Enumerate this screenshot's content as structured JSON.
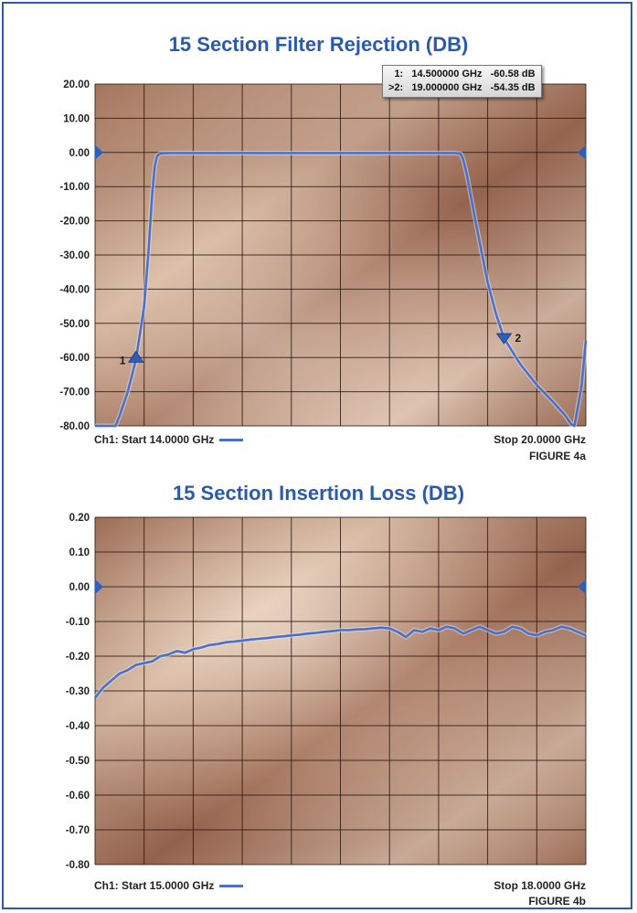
{
  "chart_data": [
    {
      "type": "line",
      "title": "15 Section Filter Rejection (DB)",
      "ylim": [
        -80,
        20
      ],
      "yticks": [
        "20.00",
        "10.00",
        "0.00",
        "-10.00",
        "-20.00",
        "-30.00",
        "-40.00",
        "-50.00",
        "-60.00",
        "-70.00",
        "-80.00"
      ],
      "xlim": [
        14.0,
        20.0
      ],
      "grid": true,
      "reference_level": 0,
      "start_label": "Ch1: Start 14.0000 GHz",
      "stop_label": "Stop 20.0000 GHz",
      "figure_label": "FIGURE 4a",
      "series": [
        {
          "color": "#4f6fc4",
          "x": [
            14.0,
            14.25,
            14.3,
            14.4,
            14.5,
            14.6,
            14.65,
            14.7,
            14.73,
            14.76,
            14.8,
            14.9,
            15.2,
            16.0,
            17.0,
            18.0,
            18.4,
            18.47,
            18.5,
            18.55,
            18.65,
            18.8,
            18.9,
            19.0,
            19.2,
            19.4,
            19.6,
            19.75,
            19.82,
            19.86,
            19.9,
            19.95,
            20.0
          ],
          "y": [
            -80.0,
            -80.0,
            -77.0,
            -70.0,
            -60.58,
            -45.0,
            -30.0,
            -12.0,
            -4.0,
            -1.0,
            -0.3,
            -0.2,
            -0.2,
            -0.2,
            -0.2,
            -0.2,
            -0.2,
            -0.4,
            -2.0,
            -7.0,
            -20.0,
            -38.0,
            -47.0,
            -54.35,
            -62.0,
            -68.0,
            -73.0,
            -77.0,
            -79.5,
            -80.0,
            -75.0,
            -68.0,
            -55.0
          ]
        }
      ],
      "markers": [
        {
          "label": "1",
          "x": 14.5,
          "y": -60.58
        },
        {
          "label": "2",
          "x": 19.0,
          "y": -54.35
        }
      ],
      "marker_readout": [
        {
          "id": "1:",
          "freq": "14.500000 GHz",
          "value": "-60.58 dB"
        },
        {
          "id": ">2:",
          "freq": "19.000000 GHz",
          "value": "-54.35 dB"
        }
      ]
    },
    {
      "type": "line",
      "title": "15 Section Insertion Loss (DB)",
      "ylim": [
        -0.8,
        0.2
      ],
      "yticks": [
        "0.20",
        "0.10",
        "0.00",
        "-0.10",
        "-0.20",
        "-0.30",
        "-0.40",
        "-0.50",
        "-0.60",
        "-0.70",
        "-0.80"
      ],
      "xlim": [
        15.0,
        18.0
      ],
      "grid": true,
      "reference_level": 0,
      "start_label": "Ch1: Start 15.0000 GHz",
      "stop_label": "Stop 18.0000 GHz",
      "figure_label": "FIGURE 4b",
      "series": [
        {
          "color": "#4f6fc4",
          "x": [
            15.0,
            15.05,
            15.1,
            15.15,
            15.2,
            15.25,
            15.3,
            15.35,
            15.4,
            15.45,
            15.5,
            15.55,
            15.6,
            15.65,
            15.7,
            15.75,
            15.8,
            15.85,
            15.9,
            15.95,
            16.0,
            16.05,
            16.1,
            16.15,
            16.2,
            16.25,
            16.3,
            16.35,
            16.4,
            16.45,
            16.5,
            16.55,
            16.6,
            16.65,
            16.7,
            16.75,
            16.8,
            16.85,
            16.9,
            16.95,
            17.0,
            17.05,
            17.1,
            17.15,
            17.2,
            17.25,
            17.3,
            17.35,
            17.4,
            17.45,
            17.5,
            17.55,
            17.6,
            17.65,
            17.7,
            17.75,
            17.8,
            17.85,
            17.9,
            17.95,
            18.0
          ],
          "y": [
            -0.32,
            -0.29,
            -0.27,
            -0.25,
            -0.24,
            -0.225,
            -0.22,
            -0.215,
            -0.2,
            -0.195,
            -0.185,
            -0.19,
            -0.18,
            -0.175,
            -0.168,
            -0.165,
            -0.16,
            -0.158,
            -0.155,
            -0.152,
            -0.15,
            -0.148,
            -0.145,
            -0.143,
            -0.14,
            -0.138,
            -0.135,
            -0.133,
            -0.13,
            -0.128,
            -0.125,
            -0.125,
            -0.123,
            -0.122,
            -0.12,
            -0.118,
            -0.12,
            -0.13,
            -0.145,
            -0.125,
            -0.13,
            -0.12,
            -0.125,
            -0.115,
            -0.12,
            -0.135,
            -0.125,
            -0.115,
            -0.125,
            -0.135,
            -0.13,
            -0.115,
            -0.12,
            -0.135,
            -0.14,
            -0.13,
            -0.125,
            -0.115,
            -0.12,
            -0.13,
            -0.14
          ]
        }
      ],
      "markers": [],
      "marker_readout": []
    }
  ]
}
